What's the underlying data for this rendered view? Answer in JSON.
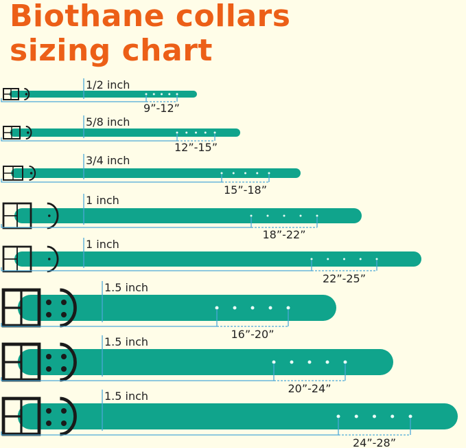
{
  "title": {
    "line1": "Biothane collars",
    "line2": "sizing chart"
  },
  "colors": {
    "title": "#ec5f17",
    "strap": "#10a48c",
    "measure_line": "#4aa8d8",
    "background": "#fffde8",
    "hardware": "#1a1a1a"
  },
  "collars": [
    {
      "width": "1/2 inch",
      "size_range": "9”-12”",
      "holes": 5
    },
    {
      "width": "5/8 inch",
      "size_range": "12”-15”",
      "holes": 5
    },
    {
      "width": "3/4 inch",
      "size_range": "15”-18”",
      "holes": 5
    },
    {
      "width": "1 inch",
      "size_range": "18”-22”",
      "holes": 5
    },
    {
      "width": "1 inch",
      "size_range": "22”-25”",
      "holes": 5
    },
    {
      "width": "1.5 inch",
      "size_range": "16”-20”",
      "holes": 5
    },
    {
      "width": "1.5 inch",
      "size_range": "20”-24”",
      "holes": 5
    },
    {
      "width": "1.5 inch",
      "size_range": "24”-28”",
      "holes": 5
    }
  ]
}
